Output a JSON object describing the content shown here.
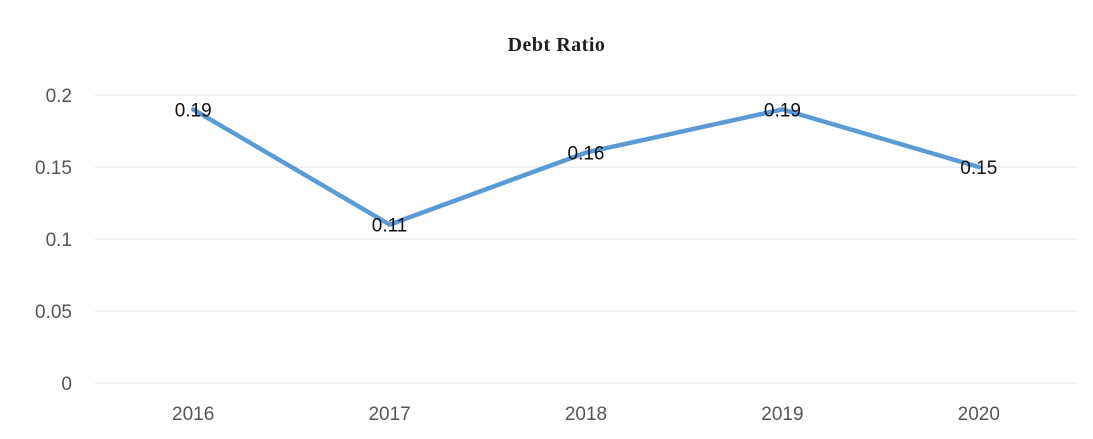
{
  "chart_data": {
    "type": "line",
    "title": "Debt Ratio",
    "categories": [
      "2016",
      "2017",
      "2018",
      "2019",
      "2020"
    ],
    "series": [
      {
        "values": [
          0.19,
          0.11,
          0.16,
          0.19,
          0.15
        ],
        "data_labels": [
          "0.19",
          "0.11",
          "0.16",
          "0.19",
          "0.15"
        ],
        "color": "#5b9bd5"
      }
    ],
    "ylim": [
      0,
      0.2
    ],
    "yticks": [
      0,
      0.05,
      0.1,
      0.15,
      0.2
    ],
    "ytick_labels": [
      "0",
      "0.05",
      "0.1",
      "0.15",
      "0.2"
    ],
    "xlabel": "",
    "ylabel": "",
    "grid": true,
    "legend": "none"
  }
}
